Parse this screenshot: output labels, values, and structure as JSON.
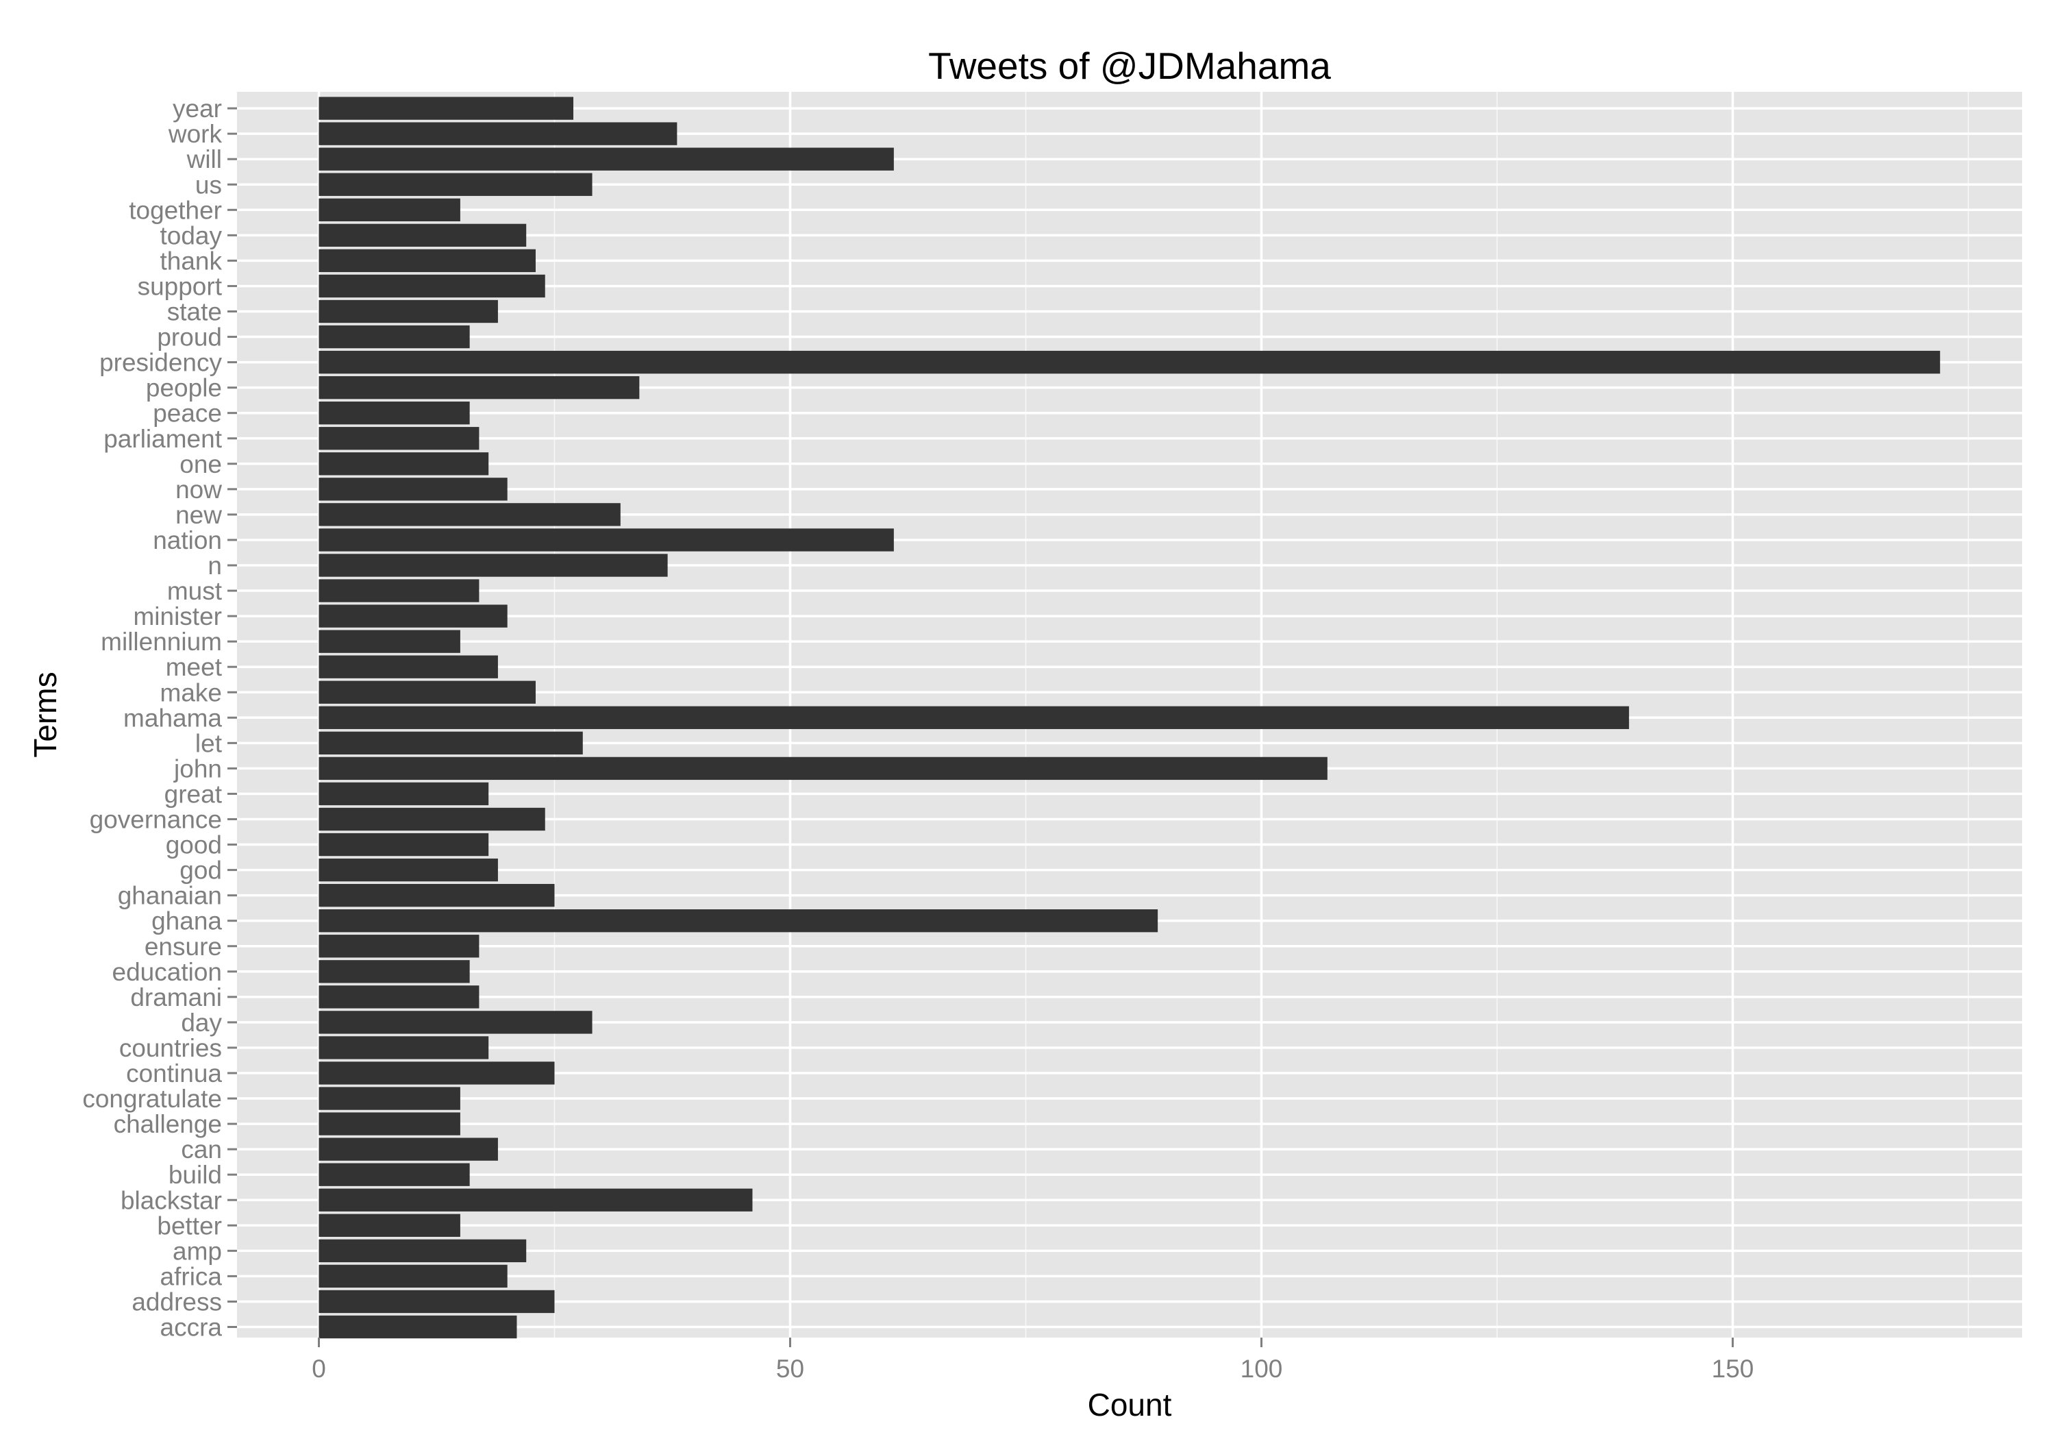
{
  "chart_data": {
    "type": "bar",
    "orientation": "horizontal",
    "title": "Tweets of @JDMahama",
    "xlabel": "Count",
    "ylabel": "Terms",
    "xlim": [
      -8.5,
      180.5
    ],
    "x_ticks": [
      0,
      50,
      100,
      150
    ],
    "x_tick_labels": [
      "0",
      "50",
      "100",
      "150"
    ],
    "grid": true,
    "legend": "none",
    "colors": {
      "panel": "#e5e5e5",
      "grid": "#ffffff",
      "bar": "#333333",
      "tick_text": "#7f7f7f",
      "title_text": "#000000"
    },
    "categories": [
      "accra",
      "address",
      "africa",
      "amp",
      "better",
      "blackstar",
      "build",
      "can",
      "challenge",
      "congratulate",
      "continua",
      "countries",
      "day",
      "dramani",
      "education",
      "ensure",
      "ghana",
      "ghanaian",
      "god",
      "good",
      "governance",
      "great",
      "john",
      "let",
      "mahama",
      "make",
      "meet",
      "millennium",
      "minister",
      "must",
      "n",
      "nation",
      "new",
      "now",
      "one",
      "parliament",
      "peace",
      "people",
      "presidency",
      "proud",
      "state",
      "support",
      "thank",
      "today",
      "together",
      "us",
      "will",
      "work",
      "year"
    ],
    "values": [
      21,
      25,
      20,
      22,
      15,
      46,
      16,
      19,
      15,
      15,
      25,
      18,
      29,
      17,
      16,
      17,
      89,
      25,
      19,
      18,
      24,
      18,
      107,
      28,
      139,
      23,
      19,
      15,
      20,
      17,
      37,
      61,
      32,
      20,
      18,
      17,
      16,
      34,
      172,
      16,
      19,
      24,
      23,
      22,
      15,
      29,
      61,
      38,
      27
    ]
  }
}
